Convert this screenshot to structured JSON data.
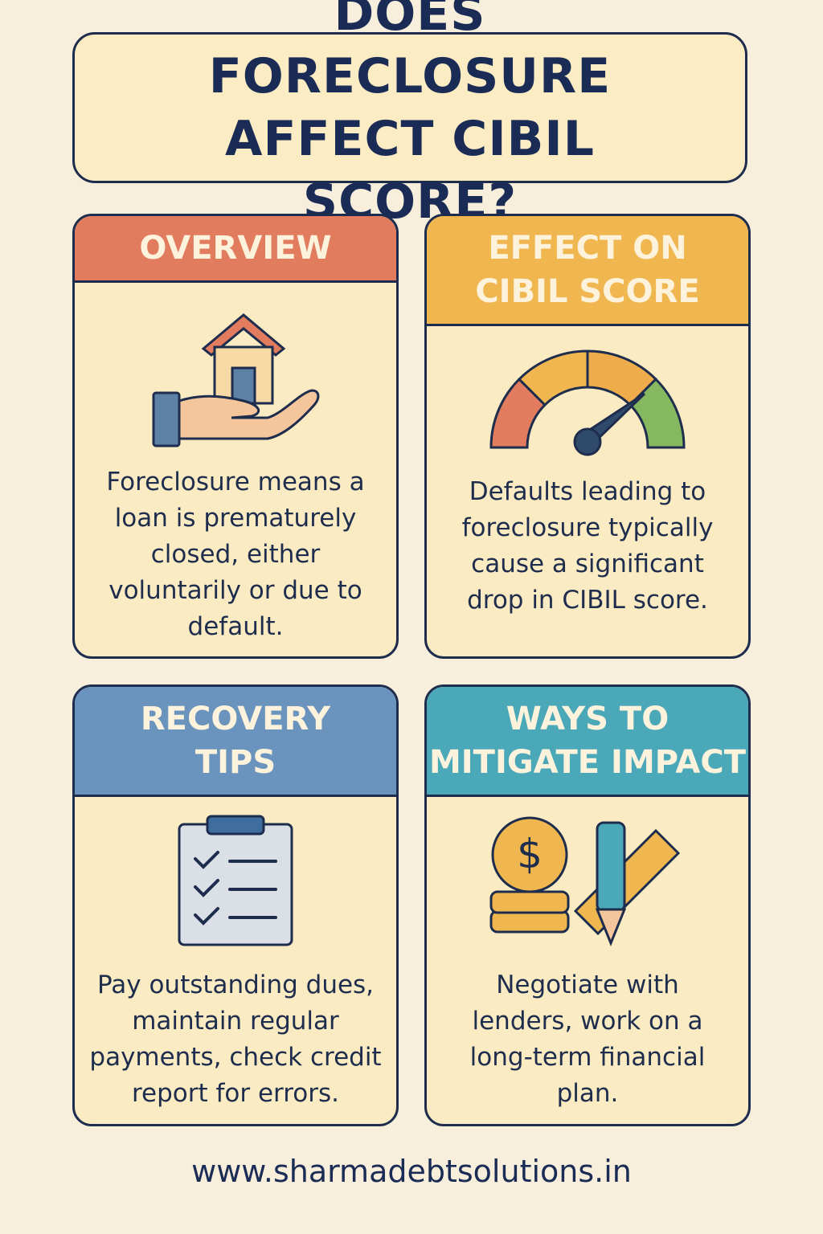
{
  "title": "DOES FORECLOSURE AFFECT CIBIL SCORE?",
  "colors": {
    "background": "#f8eedc",
    "panel": "#faebc2",
    "ink": "#1e2d4d",
    "overview": "#e27c5e",
    "effect": "#f0b650",
    "recovery": "#6a93bd",
    "mitigate": "#4aa8b8"
  },
  "cards": [
    {
      "heading": "OVERVIEW",
      "icon": "hand-holding-house-icon",
      "text": "Foreclosure means a loan is prematurely closed, either voluntarily or due to default."
    },
    {
      "heading": "EFFECT ON CIBIL SCORE",
      "icon": "speedometer-gauge-icon",
      "text": "Defaults leading to foreclosure typically cause a significant drop in CIBIL score."
    },
    {
      "heading": "RECOVERY TIPS",
      "icon": "checklist-clipboard-icon",
      "text": "Pay outstanding dues, maintain regular payments, check credit report for errors."
    },
    {
      "heading": "WAYS TO MITIGATE IMPACT",
      "icon": "coins-pencil-ruler-icon",
      "text": "Negotiate with lenders, work on a long-term financial plan."
    }
  ],
  "footer": "www.sharmadebtsolutions.in"
}
